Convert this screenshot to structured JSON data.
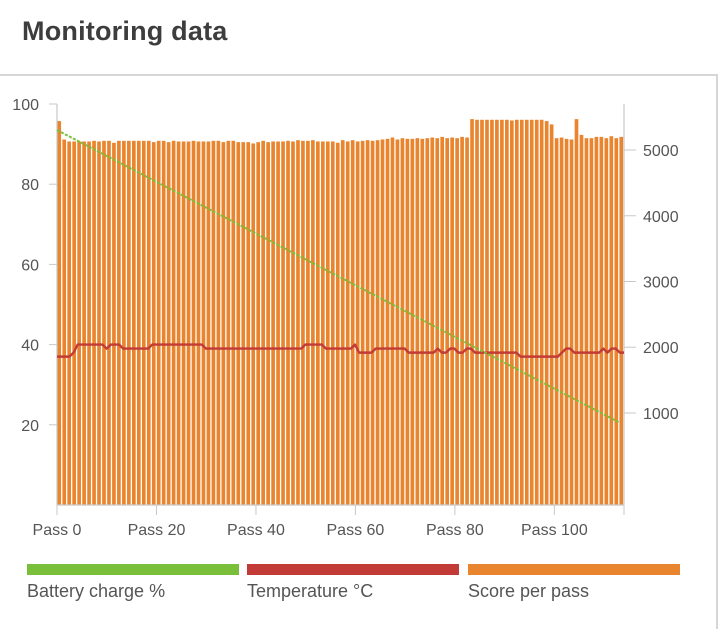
{
  "header": {
    "title": "Monitoring data"
  },
  "chart_data": {
    "type": "bar",
    "left_axis": {
      "ticks": [
        20,
        40,
        60,
        80,
        100
      ],
      "range": [
        0,
        100
      ]
    },
    "right_axis": {
      "ticks": [
        1000,
        2000,
        3000,
        4000,
        5000
      ],
      "range": [
        -400,
        5700
      ]
    },
    "x_ticks": [
      {
        "pass": 0,
        "label": "Pass 0"
      },
      {
        "pass": 20,
        "label": "Pass 20"
      },
      {
        "pass": 40,
        "label": "Pass 40"
      },
      {
        "pass": 60,
        "label": "Pass 60"
      },
      {
        "pass": 80,
        "label": "Pass 80"
      },
      {
        "pass": 100,
        "label": "Pass 100"
      }
    ],
    "x_range": [
      0,
      114
    ],
    "series": [
      {
        "name": "Score per pass",
        "axis": "right",
        "kind": "bar",
        "color": "#e9852e",
        "values": [
          5440,
          5160,
          5130,
          5130,
          5130,
          5130,
          5130,
          5140,
          5130,
          5140,
          5140,
          5110,
          5140,
          5140,
          5140,
          5140,
          5140,
          5140,
          5140,
          5120,
          5140,
          5140,
          5120,
          5140,
          5130,
          5130,
          5130,
          5140,
          5130,
          5130,
          5130,
          5140,
          5140,
          5120,
          5140,
          5140,
          5120,
          5120,
          5120,
          5100,
          5120,
          5140,
          5120,
          5130,
          5130,
          5130,
          5140,
          5130,
          5150,
          5140,
          5140,
          5150,
          5130,
          5130,
          5130,
          5130,
          5110,
          5150,
          5130,
          5150,
          5130,
          5140,
          5150,
          5140,
          5150,
          5160,
          5170,
          5190,
          5160,
          5180,
          5170,
          5170,
          5180,
          5170,
          5180,
          5190,
          5180,
          5200,
          5180,
          5190,
          5180,
          5200,
          5190,
          5470,
          5460,
          5460,
          5460,
          5460,
          5460,
          5460,
          5460,
          5450,
          5460,
          5460,
          5460,
          5460,
          5460,
          5460,
          5440,
          5390,
          5180,
          5190,
          5170,
          5160,
          5470,
          5230,
          5180,
          5180,
          5200,
          5200,
          5180,
          5210,
          5180,
          5200
        ]
      },
      {
        "name": "Battery charge %",
        "axis": "left",
        "kind": "line",
        "color": "#7abf3a",
        "start": 93.5,
        "end": 20.5
      },
      {
        "name": "Temperature °C",
        "axis": "left",
        "kind": "line",
        "color": "#c23b37",
        "values": [
          37,
          37,
          37,
          37,
          38,
          40,
          40,
          40,
          40,
          40,
          40,
          40,
          39,
          40,
          40,
          40,
          39,
          39,
          39,
          39,
          39,
          39,
          39,
          40,
          40,
          40,
          40,
          40,
          40,
          40,
          40,
          40,
          40,
          40,
          40,
          40,
          39,
          39,
          39,
          39,
          39,
          39,
          39,
          39,
          39,
          39,
          39,
          39,
          39,
          39,
          39,
          39,
          39,
          39,
          39,
          39,
          39,
          39,
          39,
          39,
          40,
          40,
          40,
          40,
          40,
          39,
          39,
          39,
          39,
          39,
          39,
          39,
          40,
          38,
          38,
          38,
          38,
          39,
          39,
          39,
          39,
          39,
          39,
          39,
          39,
          38,
          38,
          38,
          38,
          38,
          38,
          38,
          39,
          38,
          38,
          39,
          39,
          38,
          38,
          39,
          39,
          38,
          38,
          38,
          38,
          38,
          38,
          38,
          38,
          38,
          38,
          38,
          37,
          37,
          37,
          37,
          37,
          37,
          37,
          37,
          37,
          37,
          38,
          39,
          39,
          38,
          38,
          38,
          38,
          38,
          38,
          38,
          39,
          38,
          39,
          39,
          38,
          38
        ]
      }
    ],
    "legend": [
      {
        "label": "Battery charge %",
        "color": "#7abf3a"
      },
      {
        "label": "Temperature °C",
        "color": "#c23b37"
      },
      {
        "label": "Score per pass",
        "color": "#e9852e"
      }
    ]
  }
}
